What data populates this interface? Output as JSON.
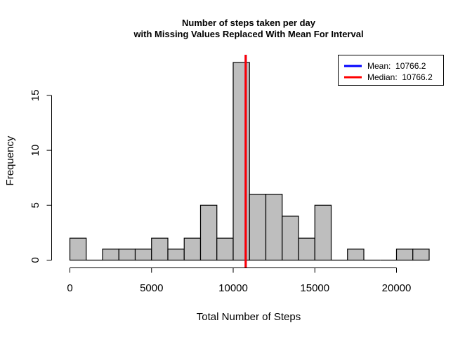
{
  "chart_data": {
    "type": "bar",
    "title": "Number of steps taken per day",
    "subtitle": "with Missing Values Replaced With Mean For Interval",
    "xlabel": "Total Number of Steps",
    "ylabel": "Frequency",
    "bin_width": 1000,
    "bins": [
      {
        "start": 0,
        "end": 1000,
        "count": 2
      },
      {
        "start": 1000,
        "end": 2000,
        "count": 0
      },
      {
        "start": 2000,
        "end": 3000,
        "count": 1
      },
      {
        "start": 3000,
        "end": 4000,
        "count": 1
      },
      {
        "start": 4000,
        "end": 5000,
        "count": 1
      },
      {
        "start": 5000,
        "end": 6000,
        "count": 2
      },
      {
        "start": 6000,
        "end": 7000,
        "count": 1
      },
      {
        "start": 7000,
        "end": 8000,
        "count": 2
      },
      {
        "start": 8000,
        "end": 9000,
        "count": 5
      },
      {
        "start": 9000,
        "end": 10000,
        "count": 2
      },
      {
        "start": 10000,
        "end": 11000,
        "count": 18
      },
      {
        "start": 11000,
        "end": 12000,
        "count": 6
      },
      {
        "start": 12000,
        "end": 13000,
        "count": 6
      },
      {
        "start": 13000,
        "end": 14000,
        "count": 4
      },
      {
        "start": 14000,
        "end": 15000,
        "count": 2
      },
      {
        "start": 15000,
        "end": 16000,
        "count": 5
      },
      {
        "start": 16000,
        "end": 17000,
        "count": 0
      },
      {
        "start": 17000,
        "end": 18000,
        "count": 1
      },
      {
        "start": 18000,
        "end": 19000,
        "count": 0
      },
      {
        "start": 19000,
        "end": 20000,
        "count": 0
      },
      {
        "start": 20000,
        "end": 21000,
        "count": 1
      },
      {
        "start": 21000,
        "end": 22000,
        "count": 1
      }
    ],
    "xlim": [
      0,
      22000
    ],
    "ylim": [
      0,
      18
    ],
    "x_ticks": [
      0,
      5000,
      10000,
      15000,
      20000
    ],
    "y_ticks": [
      0,
      5,
      10,
      15
    ],
    "bar_color": "#bebebe",
    "reference_lines": [
      {
        "name": "Mean",
        "value": 10766.2,
        "color": "#0000ff"
      },
      {
        "name": "Median",
        "value": 10766.2,
        "color": "#ff0000"
      }
    ],
    "legend": {
      "position": "top-right",
      "entries": [
        {
          "label": "Mean:  10766.2",
          "color": "#0000ff"
        },
        {
          "label": "Median:  10766.2",
          "color": "#ff0000"
        }
      ]
    },
    "grid": false
  }
}
